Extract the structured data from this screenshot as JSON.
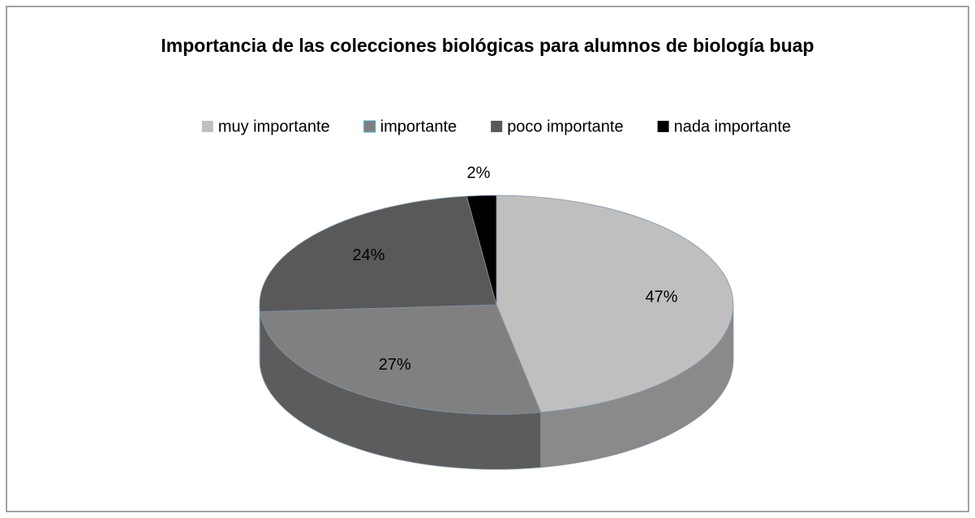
{
  "chart_data": {
    "type": "pie",
    "title": "Importancia de las colecciones biológicas para alumnos de biología buap",
    "categories": [
      "muy importante",
      "importante",
      "poco importante",
      "nada importante"
    ],
    "values": [
      47,
      27,
      24,
      2
    ],
    "value_labels": [
      "47%",
      "27%",
      "24%",
      "2%"
    ],
    "colors": [
      "#bfbfbf",
      "#808080",
      "#595959",
      "#000000"
    ],
    "legend": "top"
  }
}
